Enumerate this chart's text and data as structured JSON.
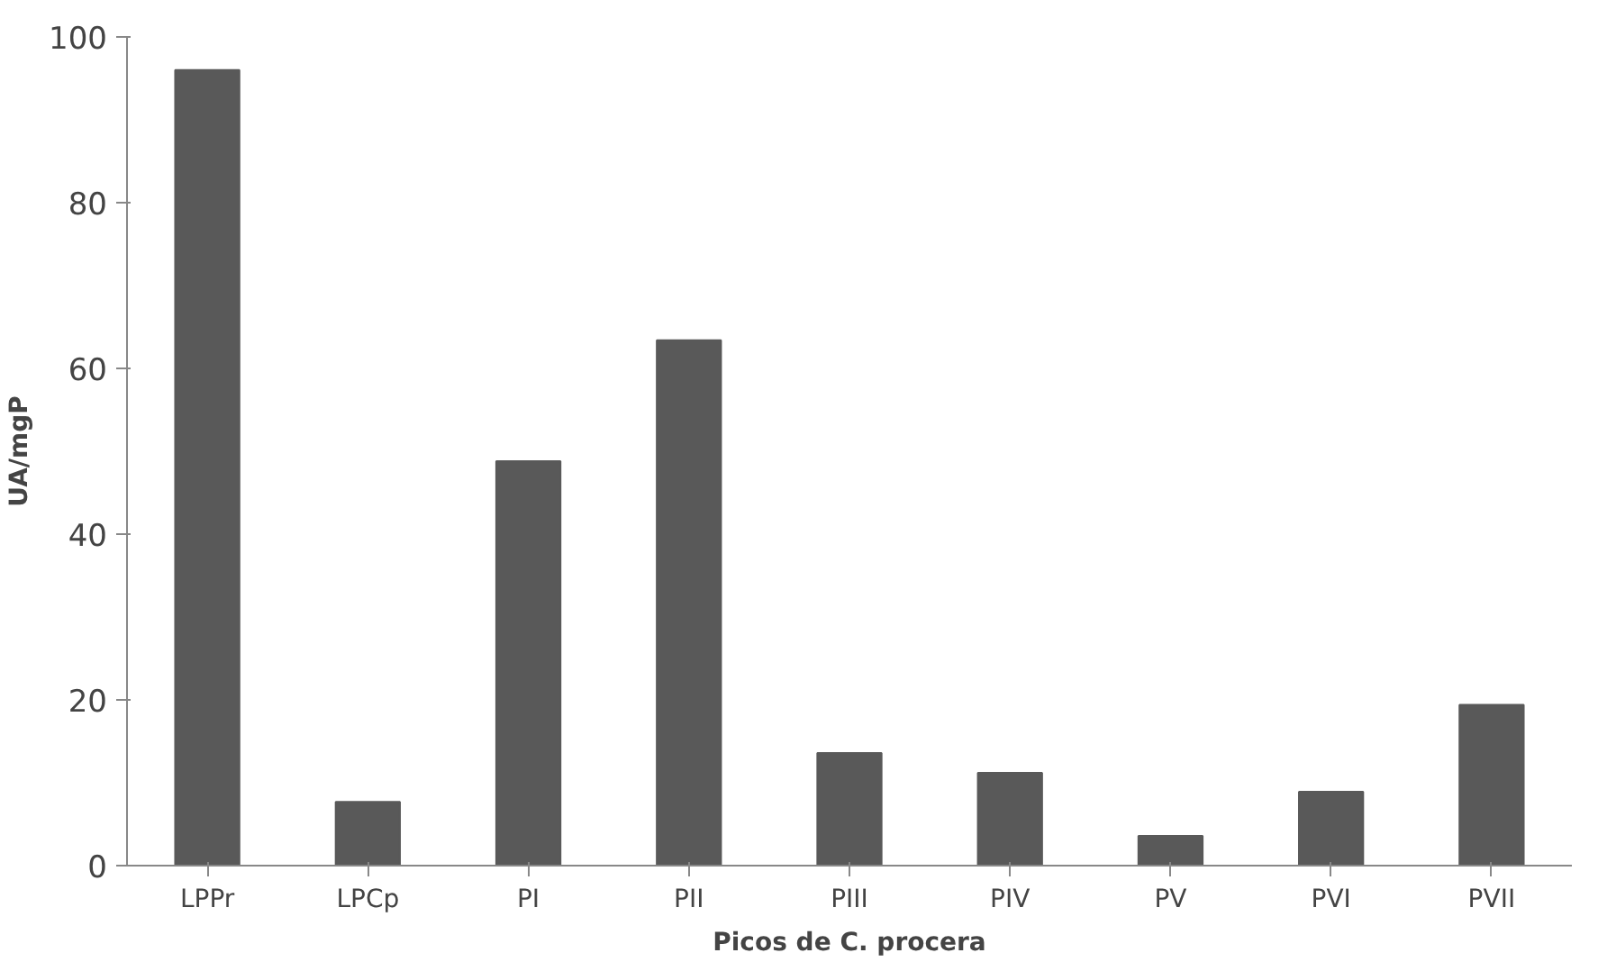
{
  "chart_data": {
    "type": "bar",
    "xlabel": "Picos de C. procera",
    "ylabel": "UA/mgP",
    "categories": [
      "LPPr",
      "LPCp",
      "PI",
      "PII",
      "PIII",
      "PIV",
      "PV",
      "PVI",
      "PVII"
    ],
    "values": [
      96,
      7.7,
      48.8,
      63.4,
      13.6,
      11.2,
      3.6,
      8.9,
      19.4
    ],
    "color": "#595959",
    "ylim": [
      0,
      100
    ],
    "yticks": [
      0,
      20,
      40,
      60,
      80,
      100
    ],
    "grid": false
  }
}
